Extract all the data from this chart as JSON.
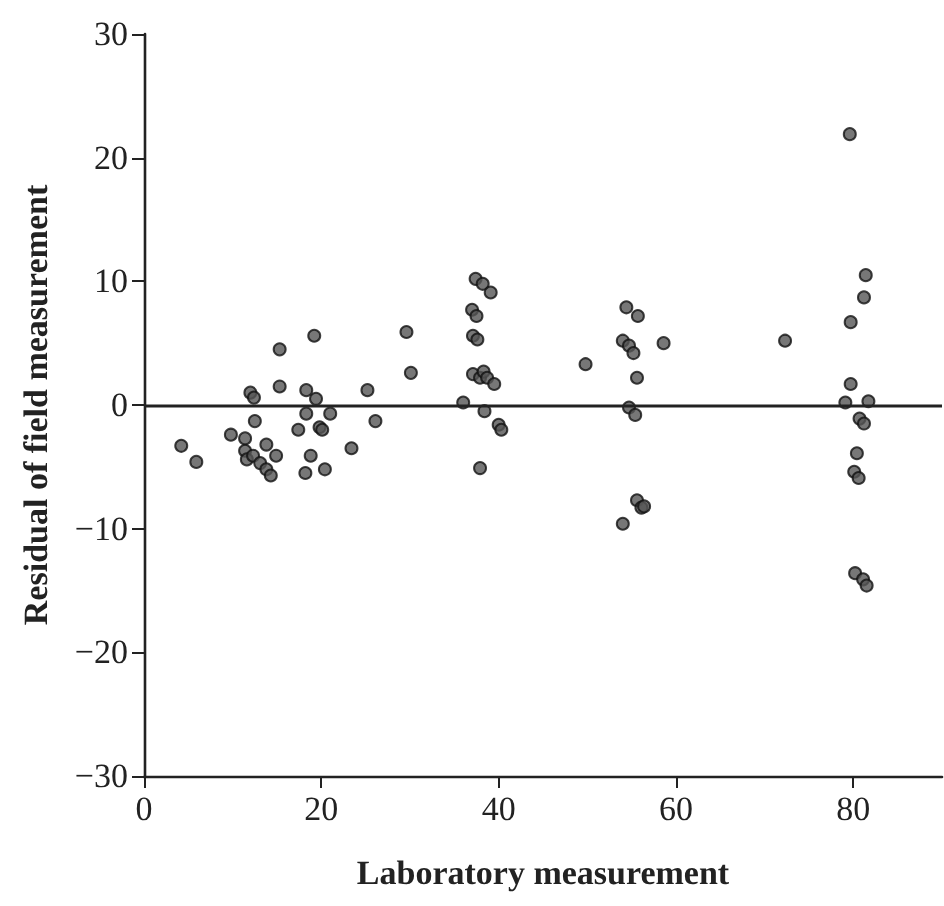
{
  "chart_data": {
    "type": "scatter",
    "xlabel": "Laboratory measurement",
    "ylabel": "Residual of field measurement",
    "xlim": [
      0,
      90
    ],
    "xticks": [
      0,
      20,
      40,
      60,
      80
    ],
    "ylim": [
      -30,
      30
    ],
    "yticks": [
      -30,
      -20,
      -10,
      0,
      10,
      20,
      30
    ],
    "grid": false,
    "marker": "circle",
    "ref_lines": [
      {
        "axis": "y",
        "value": 0,
        "color": "#222222"
      }
    ],
    "series": [
      {
        "color": "#555555",
        "x": [
          4.2,
          5.9,
          9.8,
          11.4,
          12.0,
          12.4,
          12.5,
          11.4,
          11.6,
          12.3,
          13.1,
          13.8,
          14.3,
          13.8,
          14.9,
          15.3,
          15.3,
          17.4,
          18.3,
          18.3,
          18.2,
          18.8,
          19.2,
          19.4,
          19.8,
          20.1,
          20.4,
          21.0,
          23.4,
          25.2,
          26.1,
          29.6,
          30.1,
          36.0,
          37.4,
          38.2,
          39.1,
          37.0,
          37.5,
          37.1,
          37.6,
          37.1,
          37.9,
          38.3,
          38.7,
          39.5,
          38.4,
          37.9,
          40.0,
          40.3,
          49.8,
          54.4,
          55.7,
          54.0,
          54.7,
          55.2,
          55.6,
          54.7,
          55.4,
          54.0,
          55.6,
          56.1,
          56.4,
          58.6,
          72.3,
          79.6,
          81.4,
          81.2,
          79.7,
          79.7,
          79.1,
          81.7,
          80.7,
          81.2,
          80.4,
          80.1,
          80.6,
          80.2,
          81.1,
          81.5
        ],
        "values": [
          -3.3,
          -4.6,
          -2.4,
          -2.7,
          1.0,
          0.6,
          -1.3,
          -3.7,
          -4.4,
          -4.1,
          -4.7,
          -5.2,
          -5.7,
          -3.2,
          -4.1,
          4.5,
          1.5,
          -2.0,
          1.2,
          -0.7,
          -5.5,
          -4.1,
          5.6,
          0.5,
          -1.8,
          -2.0,
          -5.2,
          -0.7,
          -3.5,
          1.2,
          -1.3,
          5.9,
          2.6,
          0.2,
          10.2,
          9.8,
          9.1,
          7.7,
          7.2,
          5.6,
          5.3,
          2.5,
          2.2,
          2.7,
          2.2,
          1.7,
          -0.5,
          -5.1,
          -1.6,
          -2.0,
          3.3,
          7.9,
          7.2,
          5.2,
          4.8,
          4.2,
          2.2,
          -0.2,
          -0.8,
          -9.6,
          -7.7,
          -8.3,
          -8.2,
          5.0,
          5.2,
          21.9,
          10.5,
          8.7,
          6.7,
          1.7,
          0.2,
          0.3,
          -1.1,
          -1.5,
          -3.9,
          -5.4,
          -5.9,
          -13.6,
          -14.1,
          -14.6
        ]
      }
    ]
  }
}
